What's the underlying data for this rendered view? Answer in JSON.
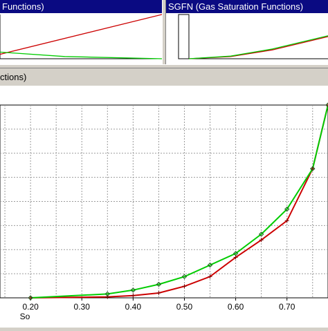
{
  "panels": {
    "left_title": "Functions)",
    "right_title": "SGFN (Gas Saturation Functions)",
    "main_title": "ctions)"
  },
  "colors": {
    "series_oil": "#cc0000",
    "series_gas": "#00cc00",
    "title_bar": "#0a0a82"
  },
  "chart_data": {
    "type": "line",
    "xlabel": "So",
    "ylabel": "",
    "xlim": [
      0.1,
      0.78
    ],
    "ylim": [
      0.0,
      1.0
    ],
    "grid": true,
    "x_ticks": [
      "0.20",
      "0.30",
      "0.40",
      "0.50",
      "0.60",
      "0.70"
    ],
    "series": [
      {
        "color": "#cc0000",
        "marker": "plus",
        "x": [
          0.2,
          0.35,
          0.4,
          0.45,
          0.5,
          0.55,
          0.6,
          0.65,
          0.7,
          0.75,
          0.78
        ],
        "y": [
          0.0,
          0.005,
          0.012,
          0.025,
          0.06,
          0.11,
          0.21,
          0.3,
          0.4,
          0.67,
          1.0
        ]
      },
      {
        "color": "#00cc00",
        "marker": "diamond",
        "x": [
          0.2,
          0.35,
          0.4,
          0.45,
          0.5,
          0.55,
          0.6,
          0.65,
          0.7,
          0.75,
          0.78
        ],
        "y": [
          0.0,
          0.02,
          0.04,
          0.07,
          0.11,
          0.17,
          0.23,
          0.33,
          0.46,
          0.67,
          1.0
        ]
      }
    ]
  },
  "mini_charts": {
    "left": {
      "series": [
        {
          "color": "#cc0000",
          "x": [
            0,
            1
          ],
          "y": [
            0.1,
            1.0
          ]
        },
        {
          "color": "#00cc00",
          "x": [
            0,
            0.4,
            1
          ],
          "y": [
            0.15,
            0.05,
            0.0
          ]
        }
      ]
    },
    "right": {
      "series": [
        {
          "color": "#cc0000",
          "x": [
            0,
            0.3,
            0.6,
            1
          ],
          "y": [
            0.0,
            0.05,
            0.2,
            0.5
          ]
        },
        {
          "color": "#00cc00",
          "x": [
            0,
            0.3,
            0.6,
            1
          ],
          "y": [
            0.0,
            0.06,
            0.22,
            0.52
          ]
        }
      ]
    }
  }
}
